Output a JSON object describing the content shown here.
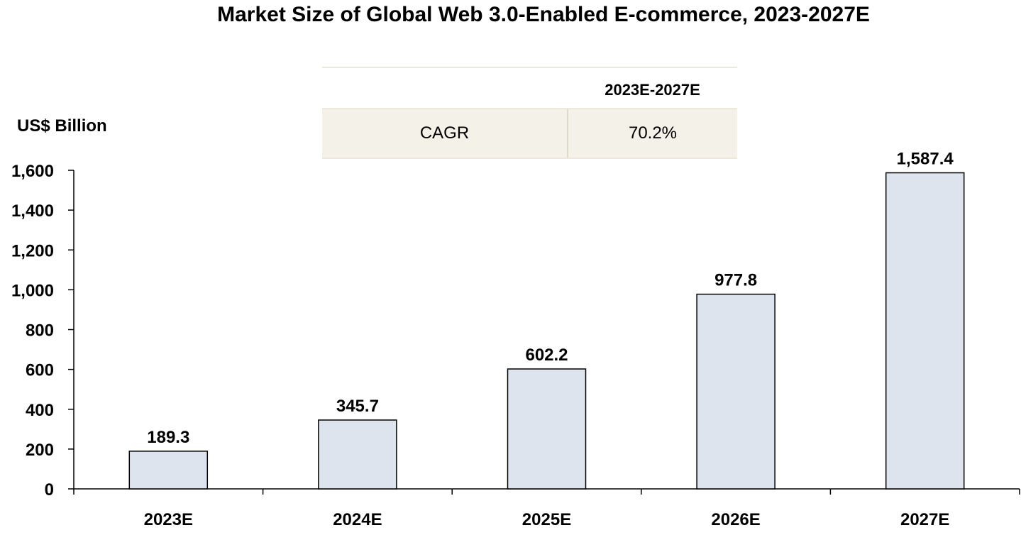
{
  "chart_data": {
    "type": "bar",
    "title": "Market Size of Global Web 3.0-Enabled E-commerce, 2023-2027E",
    "ylabel": "US$ Billion",
    "xlabel": "",
    "categories": [
      "2023E",
      "2024E",
      "2025E",
      "2026E",
      "2027E"
    ],
    "values": [
      189.3,
      345.7,
      602.2,
      977.8,
      1587.4
    ],
    "value_labels": [
      "189.3",
      "345.7",
      "602.2",
      "977.8",
      "1,587.4"
    ],
    "ylim": [
      0,
      1600
    ],
    "yticks": [
      0,
      200,
      400,
      600,
      800,
      1000,
      1200,
      1400,
      1600
    ],
    "ytick_labels": [
      "0",
      "200",
      "400",
      "600",
      "800",
      "1,000",
      "1,200",
      "1,400",
      "1,600"
    ],
    "grid": false,
    "bar_color": "#dee4ee",
    "bar_edge_color": "#000000"
  },
  "cagr_table": {
    "header": "2023E-2027E",
    "row_label": "CAGR",
    "row_value": "70.2%"
  }
}
